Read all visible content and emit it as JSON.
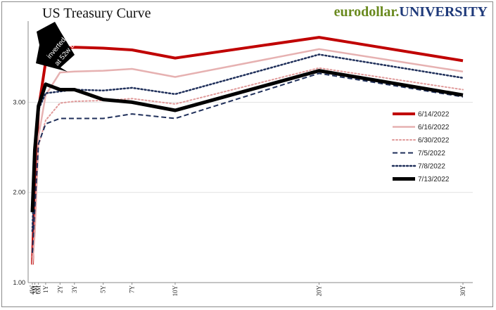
{
  "header": {
    "title": "US Treasury Curve",
    "brand_part1": "eurodollar.",
    "brand_part2": "UNIVERSITY"
  },
  "annotation": {
    "line1": "inverted",
    "line2": "at 52w bill"
  },
  "chart_data": {
    "type": "line",
    "title": "US Treasury Curve",
    "xlabel": "",
    "ylabel": "",
    "x_categories": [
      "4W",
      "3M",
      "6M",
      "1Y",
      "2Y",
      "3Y",
      "5Y",
      "7Y",
      "10Y",
      "20Y",
      "30Y"
    ],
    "x_positions_years": [
      0.077,
      0.25,
      0.5,
      1,
      2,
      3,
      5,
      7,
      10,
      20,
      30
    ],
    "ylim": [
      1.0,
      3.9
    ],
    "yticks": [
      1.0,
      2.0,
      3.0
    ],
    "ytick_labels": [
      "1.00",
      "2.00",
      "3.00"
    ],
    "legend_position": "right",
    "series": [
      {
        "name": "6/14/2022",
        "color": "#c00000",
        "dash": "solid",
        "width": 4,
        "values": [
          1.2,
          2.08,
          2.92,
          3.45,
          3.6,
          3.61,
          3.6,
          3.58,
          3.49,
          3.72,
          3.46
        ]
      },
      {
        "name": "6/16/2022",
        "color": "#e6b1b1",
        "dash": "solid",
        "width": 2.5,
        "values": [
          1.2,
          1.55,
          2.62,
          3.08,
          3.33,
          3.34,
          3.35,
          3.37,
          3.28,
          3.59,
          3.34
        ]
      },
      {
        "name": "6/30/2022",
        "color": "#e09a9a",
        "dash": "dot",
        "width": 2,
        "values": [
          1.28,
          1.62,
          2.52,
          2.8,
          2.99,
          3.01,
          3.02,
          3.04,
          2.98,
          3.38,
          3.14
        ]
      },
      {
        "name": "7/5/2022",
        "color": "#1f2f5a",
        "dash": "dash",
        "width": 2,
        "values": [
          1.33,
          1.83,
          2.54,
          2.76,
          2.82,
          2.82,
          2.82,
          2.87,
          2.82,
          3.32,
          3.06
        ]
      },
      {
        "name": "7/8/2022",
        "color": "#1f2f5a",
        "dash": "dot",
        "width": 2.5,
        "values": [
          1.57,
          2.36,
          2.92,
          3.1,
          3.12,
          3.14,
          3.13,
          3.16,
          3.09,
          3.53,
          3.27
        ]
      },
      {
        "name": "7/13/2022",
        "color": "#000000",
        "dash": "solid",
        "width": 5,
        "values": [
          1.78,
          2.47,
          2.96,
          3.2,
          3.14,
          3.14,
          3.03,
          3.0,
          2.91,
          3.35,
          3.08
        ]
      }
    ]
  }
}
